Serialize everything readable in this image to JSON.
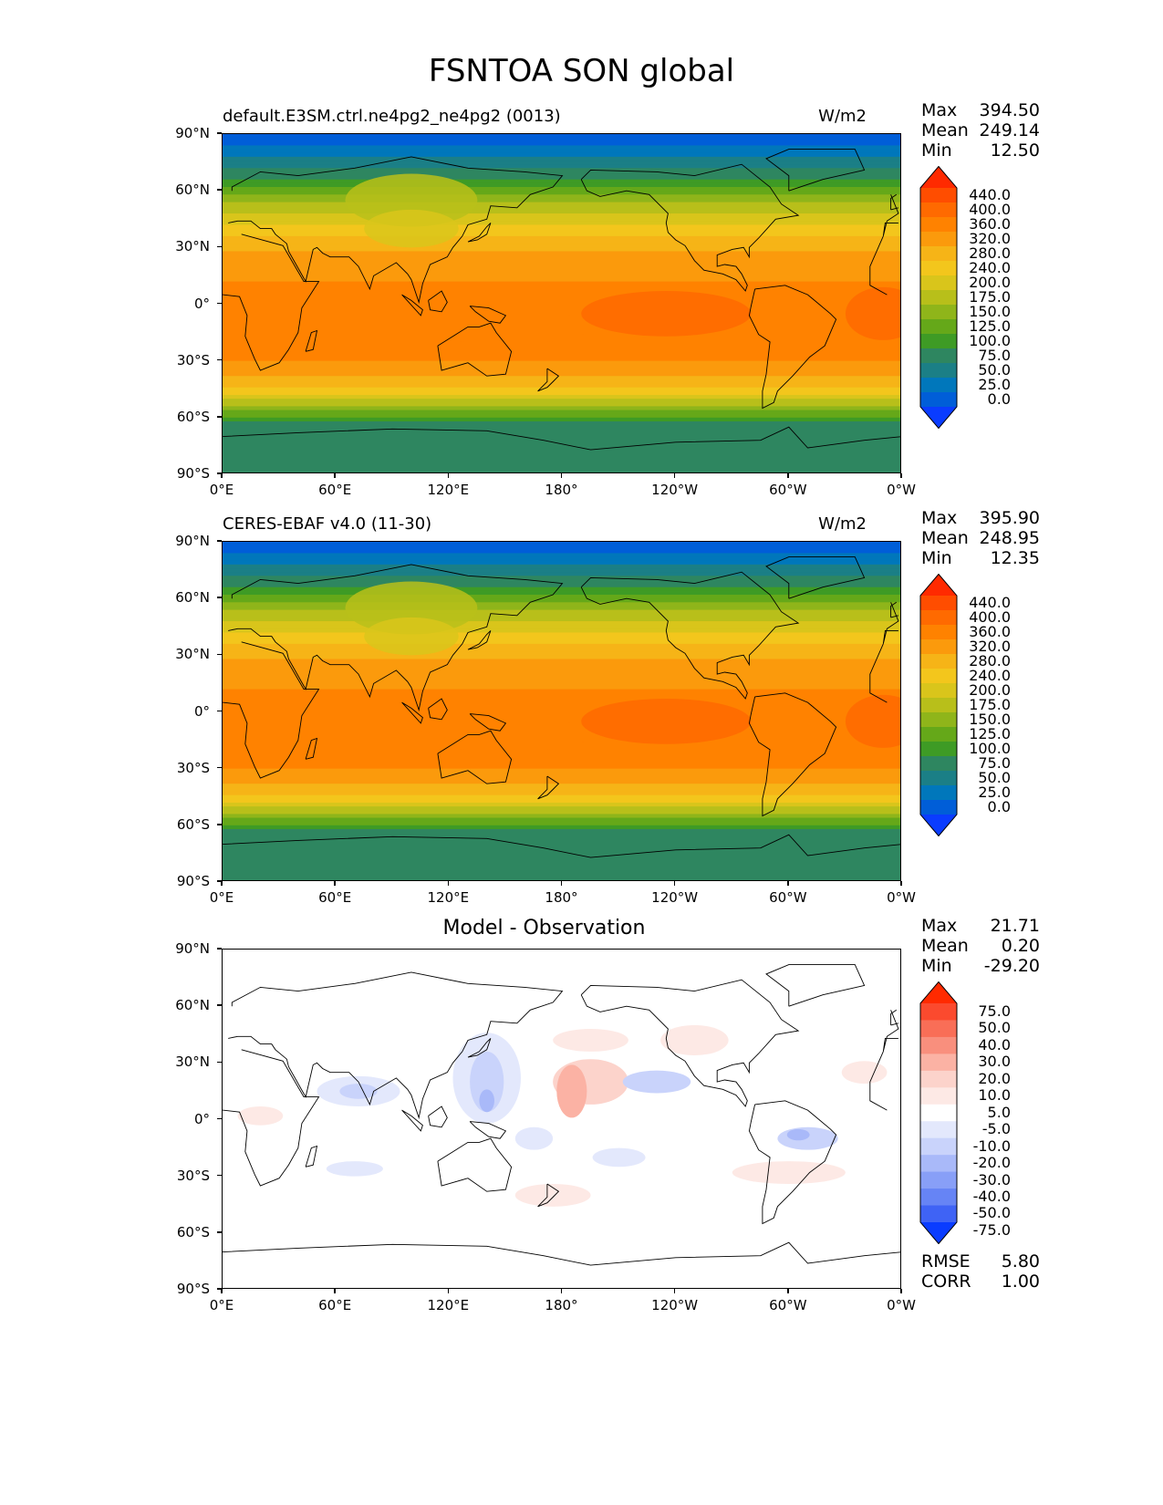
{
  "title": "FSNTOA SON global",
  "panels": [
    {
      "left_title": "default.E3SM.ctrl.ne4pg2_ne4pg2 (0013)",
      "right_title": "W/m2",
      "center_title": "",
      "stats": {
        "max_label": "Max",
        "max": "394.50",
        "mean_label": "Mean",
        "mean": "249.14",
        "min_label": "Min",
        "min": "12.50"
      }
    },
    {
      "left_title": "CERES-EBAF v4.0 (11-30)",
      "right_title": "W/m2",
      "center_title": "",
      "stats": {
        "max_label": "Max",
        "max": "395.90",
        "mean_label": "Mean",
        "mean": "248.95",
        "min_label": "Min",
        "min": "12.35"
      }
    },
    {
      "left_title": "",
      "right_title": "",
      "center_title": "Model - Observation",
      "stats": {
        "max_label": "Max",
        "max": "21.71",
        "mean_label": "Mean",
        "mean": "0.20",
        "min_label": "Min",
        "min": "-29.20"
      },
      "rmse_label": "RMSE",
      "rmse": "5.80",
      "corr_label": "CORR",
      "corr": "1.00"
    }
  ],
  "lat_ticks": [
    "90°N",
    "60°N",
    "30°N",
    "0°",
    "30°S",
    "60°S",
    "90°S"
  ],
  "lon_ticks": [
    "0°E",
    "60°E",
    "120°E",
    "180°",
    "120°W",
    "60°W",
    "0°W"
  ],
  "colorbar_field": {
    "labels": [
      "440.0",
      "400.0",
      "360.0",
      "320.0",
      "280.0",
      "240.0",
      "200.0",
      "175.0",
      "150.0",
      "125.0",
      "100.0",
      "75.0",
      "50.0",
      "25.0",
      "0.0"
    ],
    "colors": [
      "#ff2a00",
      "#ff4d00",
      "#ff6a00",
      "#ff8200",
      "#fb9a0c",
      "#f6b417",
      "#f3c61c",
      "#d9c51b",
      "#b8bf1a",
      "#8fb51a",
      "#65a819",
      "#3e9b25",
      "#2e8660",
      "#1b7f86",
      "#0077bb",
      "#005ed8",
      "#0a3cff"
    ]
  },
  "colorbar_diff": {
    "labels": [
      "75.0",
      "50.0",
      "40.0",
      "30.0",
      "20.0",
      "10.0",
      "5.0",
      "-5.0",
      "-10.0",
      "-20.0",
      "-30.0",
      "-40.0",
      "-50.0",
      "-75.0"
    ],
    "colors": [
      "#ff2a00",
      "#fb4a2e",
      "#f96e57",
      "#f98f7d",
      "#fbb2a4",
      "#fcd3cb",
      "#fde9e5",
      "#ffffff",
      "#e3e8fc",
      "#c9d3fb",
      "#a9b9f9",
      "#889ff7",
      "#6684f5",
      "#3f63f5",
      "#0a3cff"
    ]
  }
}
